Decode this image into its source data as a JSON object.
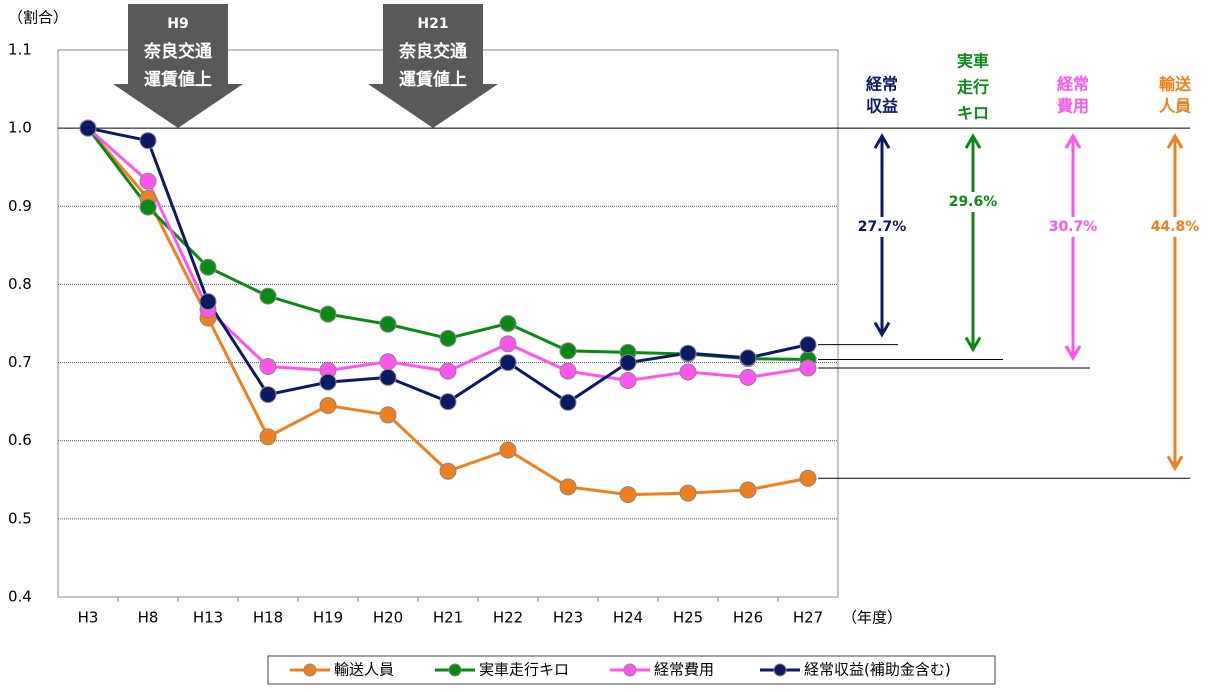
{
  "chart_data": {
    "type": "line",
    "y_label": "（割合）",
    "x_label": "（年度）",
    "categories": [
      "H3",
      "H8",
      "H13",
      "H18",
      "H19",
      "H20",
      "H21",
      "H22",
      "H23",
      "H24",
      "H25",
      "H26",
      "H27"
    ],
    "series": [
      {
        "name": "輸送人員",
        "color": "#f07f1e",
        "values": [
          1.0,
          0.91,
          0.757,
          0.605,
          0.645,
          0.633,
          0.561,
          0.588,
          0.541,
          0.531,
          0.533,
          0.537,
          0.552
        ]
      },
      {
        "name": "実車走行キロ",
        "color": "#0a8a14",
        "values": [
          1.0,
          0.899,
          0.822,
          0.785,
          0.762,
          0.749,
          0.731,
          0.75,
          0.715,
          0.713,
          0.711,
          0.705,
          0.704
        ]
      },
      {
        "name": "経常費用",
        "color": "#ff55ee",
        "values": [
          1.0,
          0.932,
          0.768,
          0.695,
          0.69,
          0.701,
          0.689,
          0.724,
          0.689,
          0.677,
          0.688,
          0.681,
          0.693
        ]
      },
      {
        "name": "経常収益(補助金含む)",
        "color": "#0c1a66",
        "values": [
          1.0,
          0.984,
          0.778,
          0.659,
          0.675,
          0.681,
          0.65,
          0.7,
          0.649,
          0.7,
          0.712,
          0.706,
          0.723
        ]
      }
    ],
    "ylim": [
      0.4,
      1.1
    ],
    "yticks": [
      0.4,
      0.5,
      0.6,
      0.7,
      0.8,
      0.9,
      {
        "value": 1,
        "label": "1.0"
      },
      1.1
    ],
    "grid": true,
    "events": [
      {
        "title": "H9",
        "lines": [
          "奈良交通",
          "運賃値上"
        ]
      },
      {
        "title": "H21",
        "lines": [
          "奈良交通",
          "運賃値上"
        ]
      }
    ],
    "changes": [
      {
        "lines": [
          "経常",
          "収益"
        ],
        "change": "27.7%"
      },
      {
        "lines": [
          "実車",
          "走行",
          "キロ"
        ],
        "change": "29.6%"
      },
      {
        "lines": [
          "経常",
          "費用"
        ],
        "change": "30.7%"
      },
      {
        "lines": [
          "輸送",
          "人員"
        ],
        "change": "44.8%"
      }
    ]
  }
}
